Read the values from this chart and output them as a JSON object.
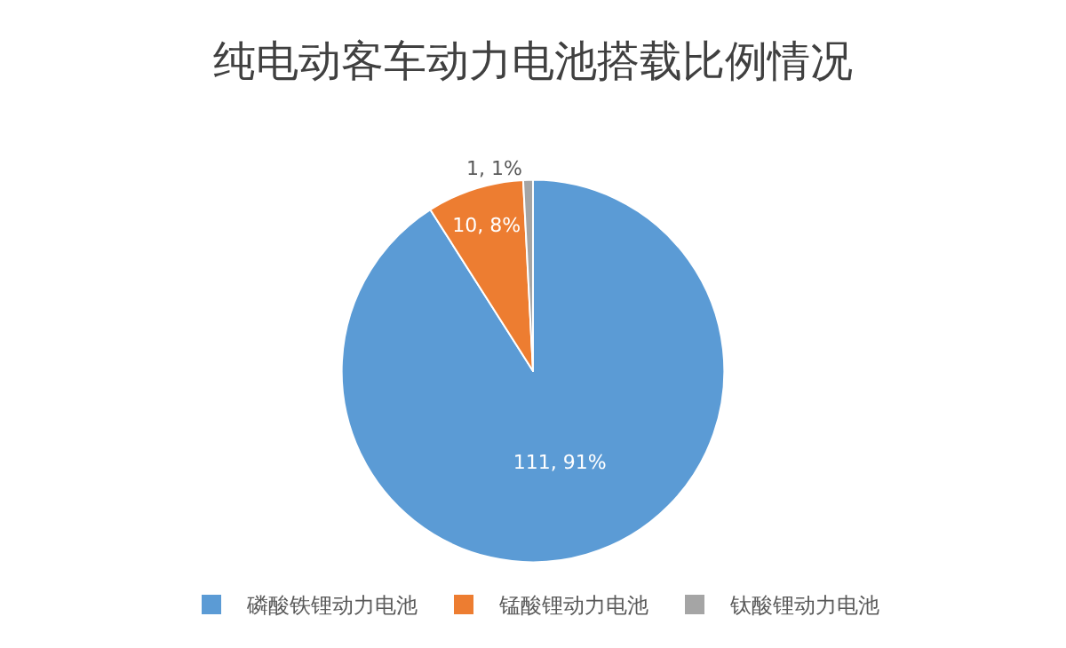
{
  "chart_data": {
    "type": "pie",
    "title": "纯电动客车动力电池搭载比例情况",
    "categories": [
      "磷酸铁锂动力电池",
      "锰酸锂动力电池",
      "钛酸锂动力电池"
    ],
    "values": [
      111,
      10,
      1
    ],
    "colors": [
      "#5b9bd5",
      "#ed7d31",
      "#a5a5a5"
    ],
    "value_labels": [
      "111, 91%",
      "10, 8%",
      "1, 1%"
    ],
    "legend": "bottom"
  }
}
